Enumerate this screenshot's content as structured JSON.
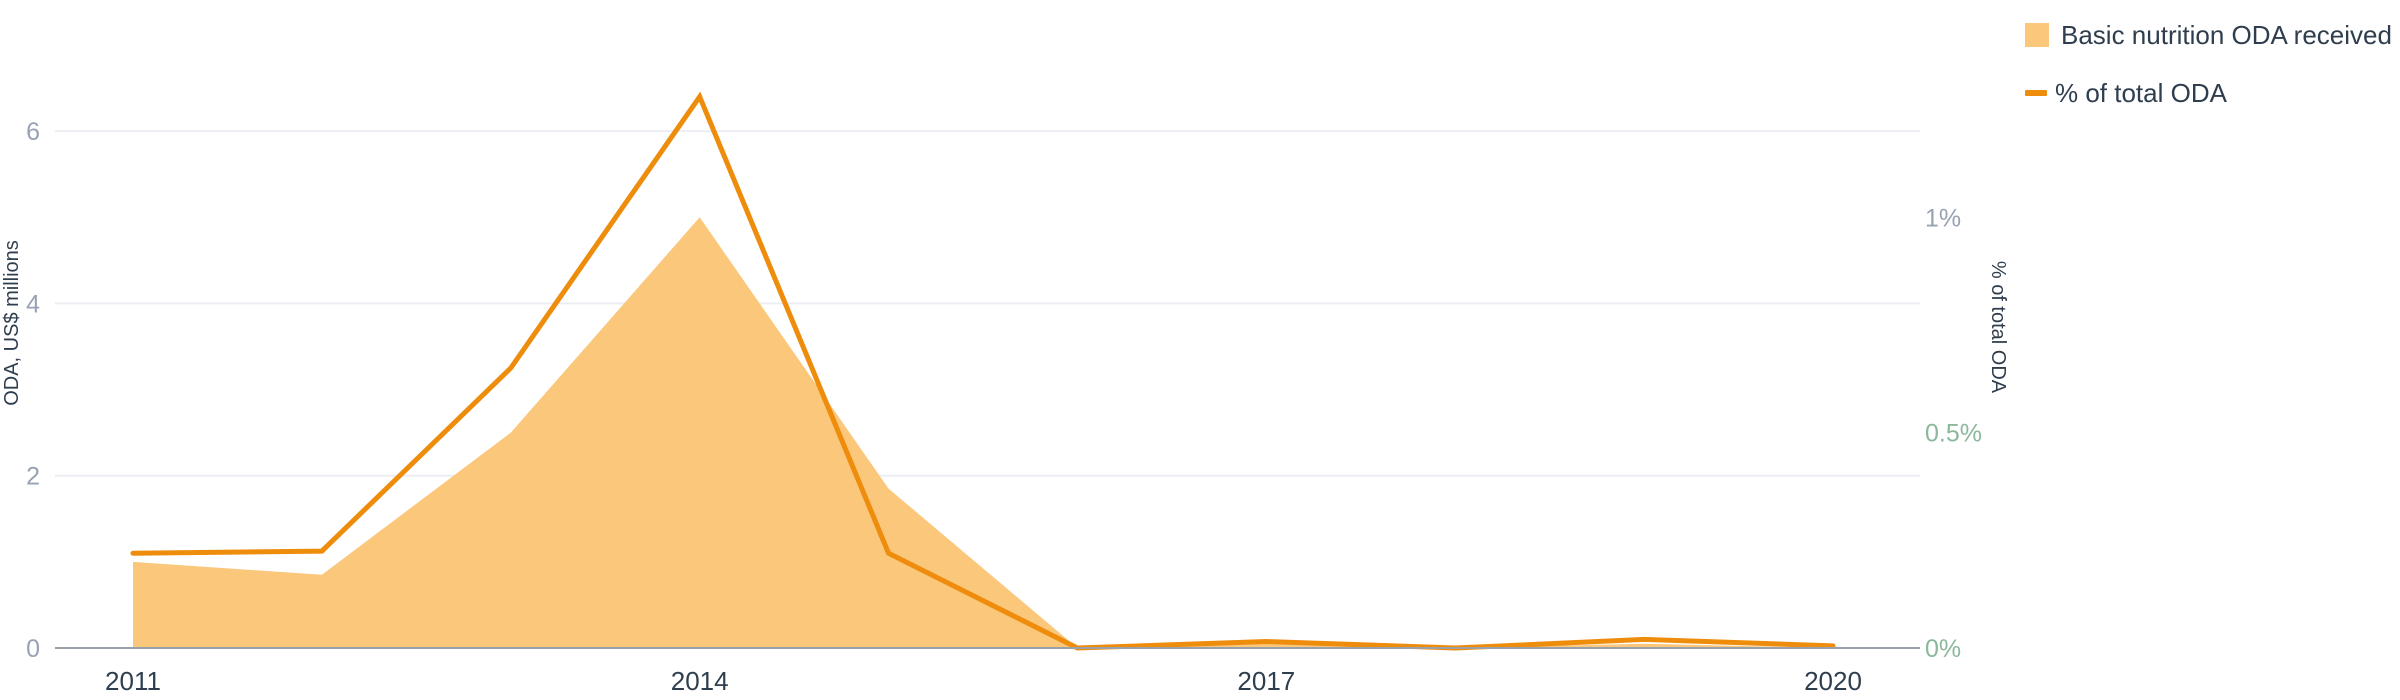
{
  "chart_data": {
    "type": "area",
    "x": [
      2011,
      2012,
      2013,
      2014,
      2015,
      2016,
      2017,
      2018,
      2019,
      2020
    ],
    "x_tick_labels": [
      "2011",
      "2014",
      "2017",
      "2020"
    ],
    "x_tick_values": [
      2011,
      2014,
      2017,
      2020
    ],
    "xlim": [
      2011,
      2020
    ],
    "series": [
      {
        "name": "Basic nutrition ODA received",
        "kind": "area",
        "axis": "left",
        "values": [
          1.0,
          0.85,
          2.5,
          5.0,
          1.85,
          0.0,
          0.05,
          0.0,
          0.05,
          0.0
        ],
        "color": "#fbc77a"
      },
      {
        "name": "% of total ODA",
        "kind": "line",
        "axis": "right",
        "values": [
          0.22,
          0.225,
          0.65,
          1.28,
          0.22,
          0.0,
          0.015,
          0.0,
          0.02,
          0.005
        ],
        "color": "#ee8c0c"
      }
    ],
    "y_left": {
      "label": "ODA, US$ millions",
      "ylim": [
        0,
        7
      ],
      "ticks": [
        0,
        2,
        4,
        6
      ],
      "tick_labels": [
        "0",
        "2",
        "4",
        "6"
      ]
    },
    "y_right": {
      "label": "% of total ODA",
      "ylim": [
        0,
        1.4
      ],
      "ticks": [
        0,
        0.5,
        1
      ],
      "tick_labels": [
        "0%",
        "0.5%",
        "1%"
      ]
    },
    "grid": true,
    "legend": {
      "position": "top-right",
      "entries": [
        "Basic nutrition ODA received",
        "% of total ODA"
      ]
    },
    "title": "",
    "xlabel": ""
  }
}
